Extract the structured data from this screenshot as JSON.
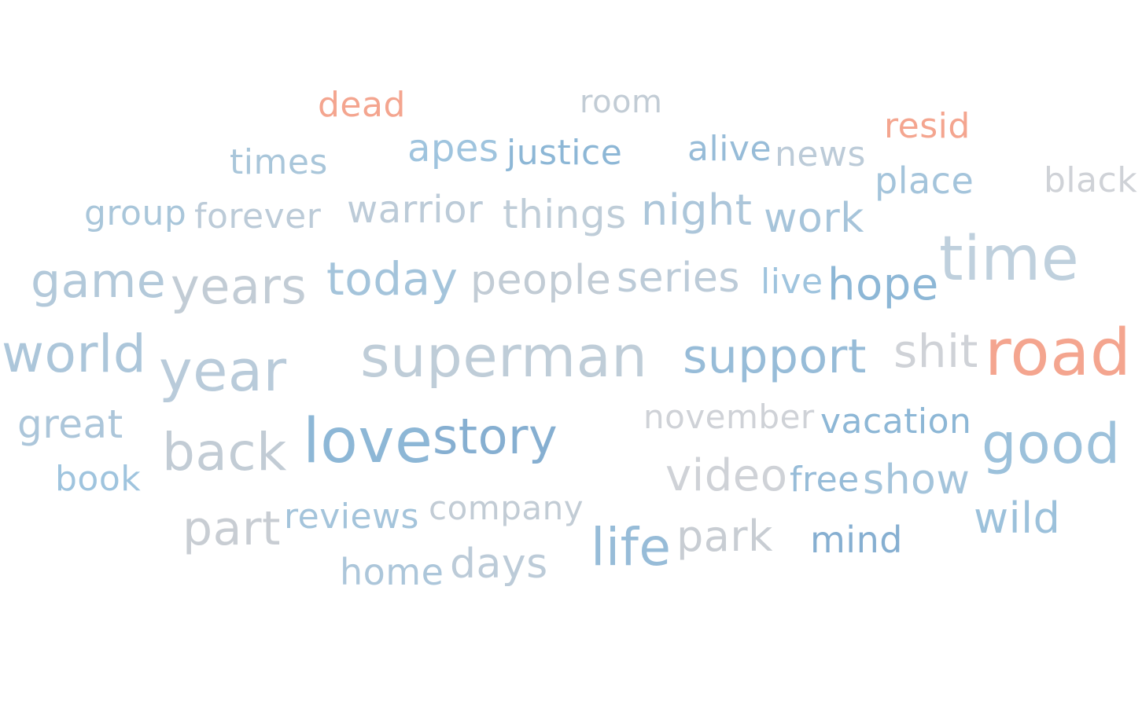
{
  "words": [
    {
      "text": "dead",
      "color": "#f4a58f"
    },
    {
      "text": "room",
      "color": "#c2ccd5"
    },
    {
      "text": "resid",
      "color": "#f4a58f"
    },
    {
      "text": "times",
      "color": "#a9c6da"
    },
    {
      "text": "apes",
      "color": "#9fc4de"
    },
    {
      "text": "justice",
      "color": "#8db7d6"
    },
    {
      "text": "alive",
      "color": "#97bcd8"
    },
    {
      "text": "news",
      "color": "#bccbd8"
    },
    {
      "text": "place",
      "color": "#a4c4db"
    },
    {
      "text": "black",
      "color": "#cfd2d7"
    },
    {
      "text": "group",
      "color": "#a9c6da"
    },
    {
      "text": "forever",
      "color": "#bccbd8"
    },
    {
      "text": "warrior",
      "color": "#bccbd8"
    },
    {
      "text": "things",
      "color": "#bfcdd8"
    },
    {
      "text": "night",
      "color": "#acc6da"
    },
    {
      "text": "work",
      "color": "#a6c4da"
    },
    {
      "text": "time",
      "color": "#bfd0dd"
    },
    {
      "text": "game",
      "color": "#b3c9da"
    },
    {
      "text": "years",
      "color": "#c2ccd5"
    },
    {
      "text": "today",
      "color": "#a4c4db"
    },
    {
      "text": "people",
      "color": "#c2ccd5"
    },
    {
      "text": "series",
      "color": "#bccbd8"
    },
    {
      "text": "live",
      "color": "#9fc4de"
    },
    {
      "text": "hope",
      "color": "#8db7d6"
    },
    {
      "text": "world",
      "color": "#acc6da"
    },
    {
      "text": "year",
      "color": "#b9cbda"
    },
    {
      "text": "superman",
      "color": "#bfcdd8"
    },
    {
      "text": "support",
      "color": "#97bcd8"
    },
    {
      "text": "shit",
      "color": "#cfd2d7"
    },
    {
      "text": "road",
      "color": "#f4a58f"
    },
    {
      "text": "great",
      "color": "#acc6da"
    },
    {
      "text": "back",
      "color": "#c2ccd5"
    },
    {
      "text": "love",
      "color": "#8db7d6"
    },
    {
      "text": "story",
      "color": "#86afd1"
    },
    {
      "text": "november",
      "color": "#cfd2d7"
    },
    {
      "text": "vacation",
      "color": "#8db7d6"
    },
    {
      "text": "good",
      "color": "#9cc1db"
    },
    {
      "text": "book",
      "color": "#9fc4de"
    },
    {
      "text": "video",
      "color": "#cfd2d7"
    },
    {
      "text": "free",
      "color": "#97bcd8"
    },
    {
      "text": "show",
      "color": "#a4c4db"
    },
    {
      "text": "part",
      "color": "#c8cdd3"
    },
    {
      "text": "reviews",
      "color": "#a4c4db"
    },
    {
      "text": "company",
      "color": "#c2ccd5"
    },
    {
      "text": "wild",
      "color": "#9cc1db"
    },
    {
      "text": "life",
      "color": "#97bcd8"
    },
    {
      "text": "park",
      "color": "#c8cdd3"
    },
    {
      "text": "mind",
      "color": "#86afd1"
    },
    {
      "text": "home",
      "color": "#acc6da"
    },
    {
      "text": "days",
      "color": "#bccbd8"
    }
  ]
}
